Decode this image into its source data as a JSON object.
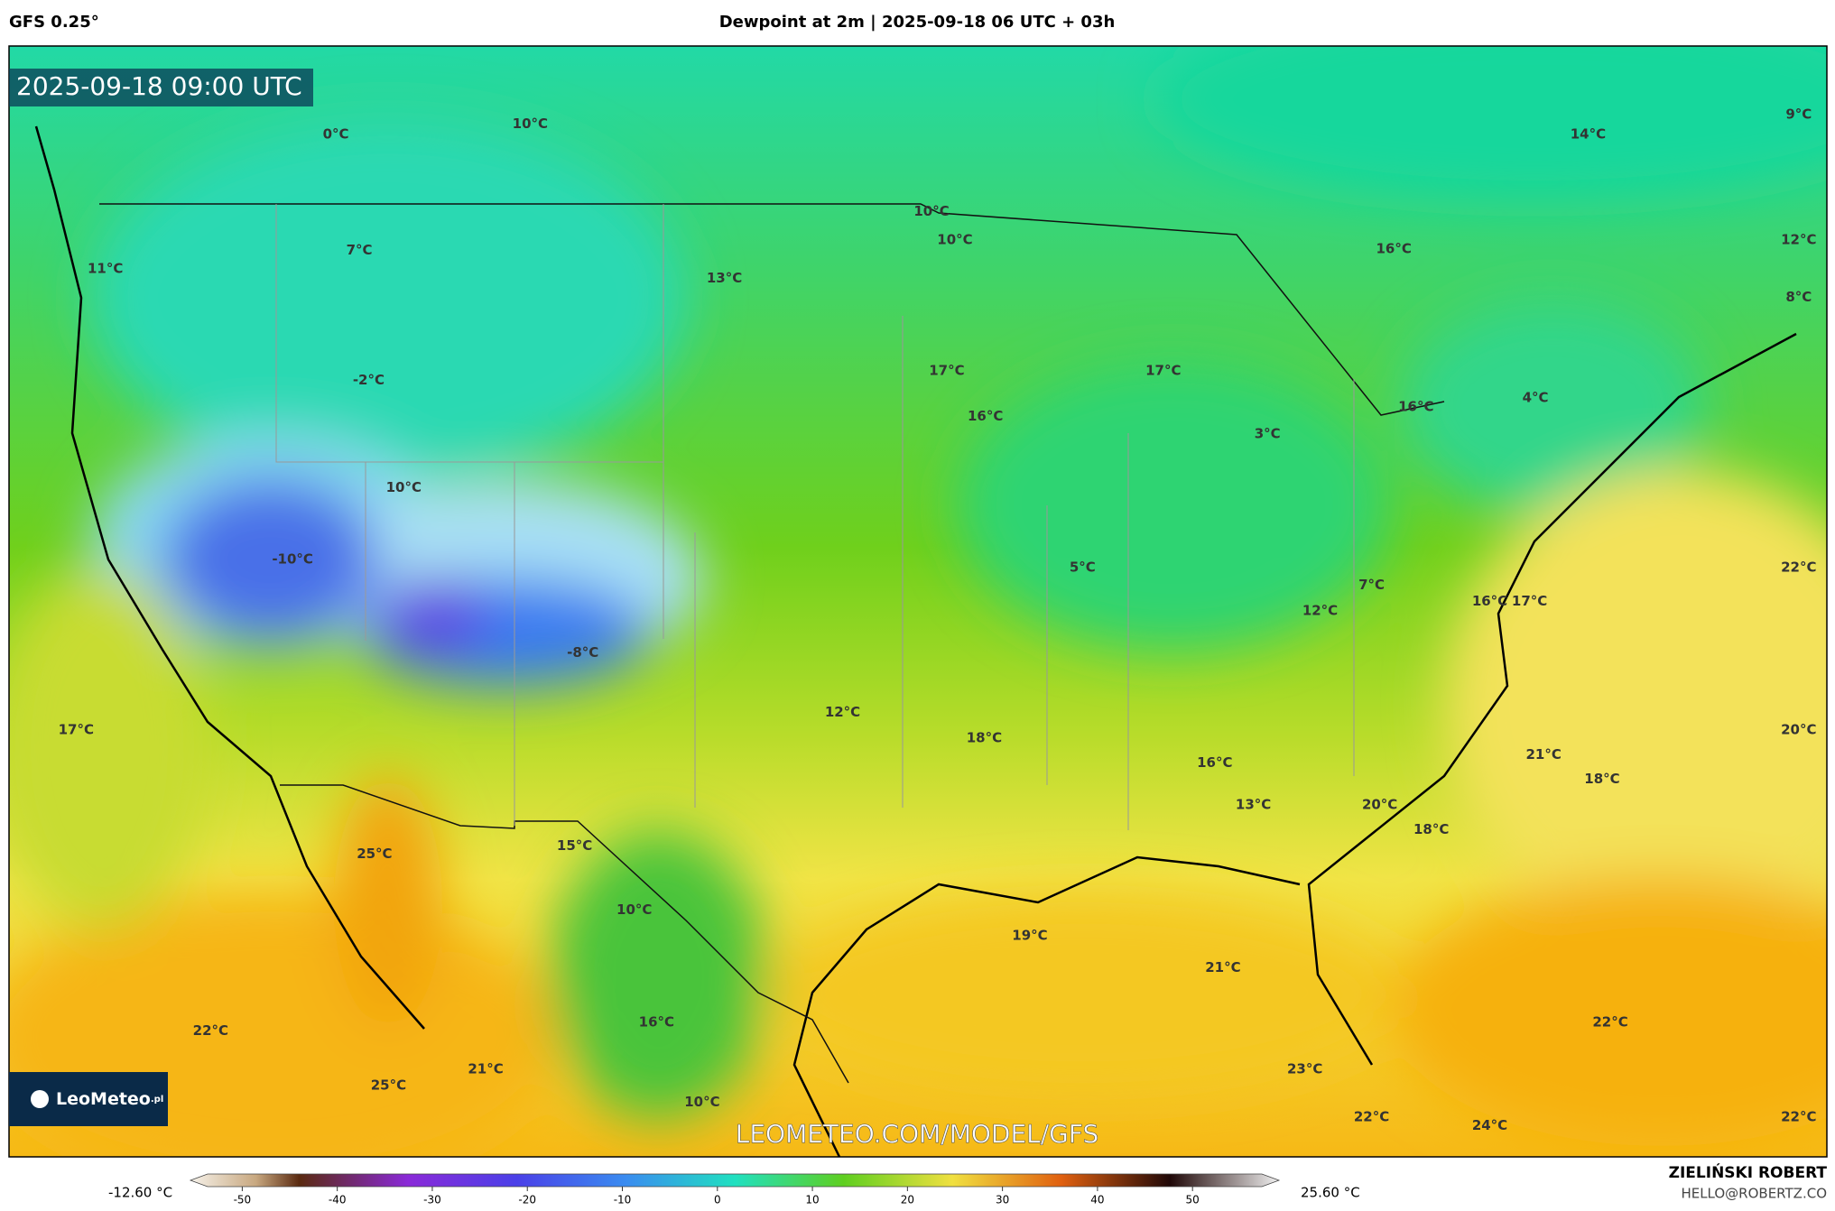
{
  "header": {
    "model": "GFS 0.25°",
    "title": "Dewpoint at 2m | 2025-09-18 06 UTC + 03h"
  },
  "map": {
    "timestamp": "2025-09-18 09:00 UTC",
    "logo": "LeoMeteo",
    "logo_suffix": ".pl",
    "watermark": "LEOMETEO.COM/MODEL/GFS",
    "labels": [
      "0°C",
      "10°C",
      "14°C",
      "9°C",
      "7°C",
      "11°C",
      "13°C",
      "10°C",
      "10°C",
      "16°C",
      "12°C",
      "8°C",
      "-2°C",
      "17°C",
      "17°C",
      "16°C",
      "3°C",
      "16°C",
      "4°C",
      "10°C",
      "-10°C",
      "5°C",
      "22°C",
      "7°C",
      "12°C",
      "16°C",
      "17°C",
      "-8°C",
      "17°C",
      "12°C",
      "18°C",
      "20°C",
      "21°C",
      "18°C",
      "16°C",
      "13°C",
      "20°C",
      "18°C",
      "25°C",
      "15°C",
      "10°C",
      "19°C",
      "21°C",
      "22°C",
      "16°C",
      "22°C",
      "21°C",
      "23°C",
      "25°C",
      "10°C",
      "22°C",
      "24°C",
      "22°C"
    ]
  },
  "colorbar": {
    "min_label": "-12.60 °C",
    "max_label": "25.60 °C",
    "ticks": [
      -50,
      -40,
      -30,
      -20,
      -10,
      0,
      10,
      20,
      30,
      40,
      50
    ]
  },
  "footer": {
    "author": "ZIELIŃSKI ROBERT",
    "email": "HELLO@ROBERTZ.CO"
  }
}
